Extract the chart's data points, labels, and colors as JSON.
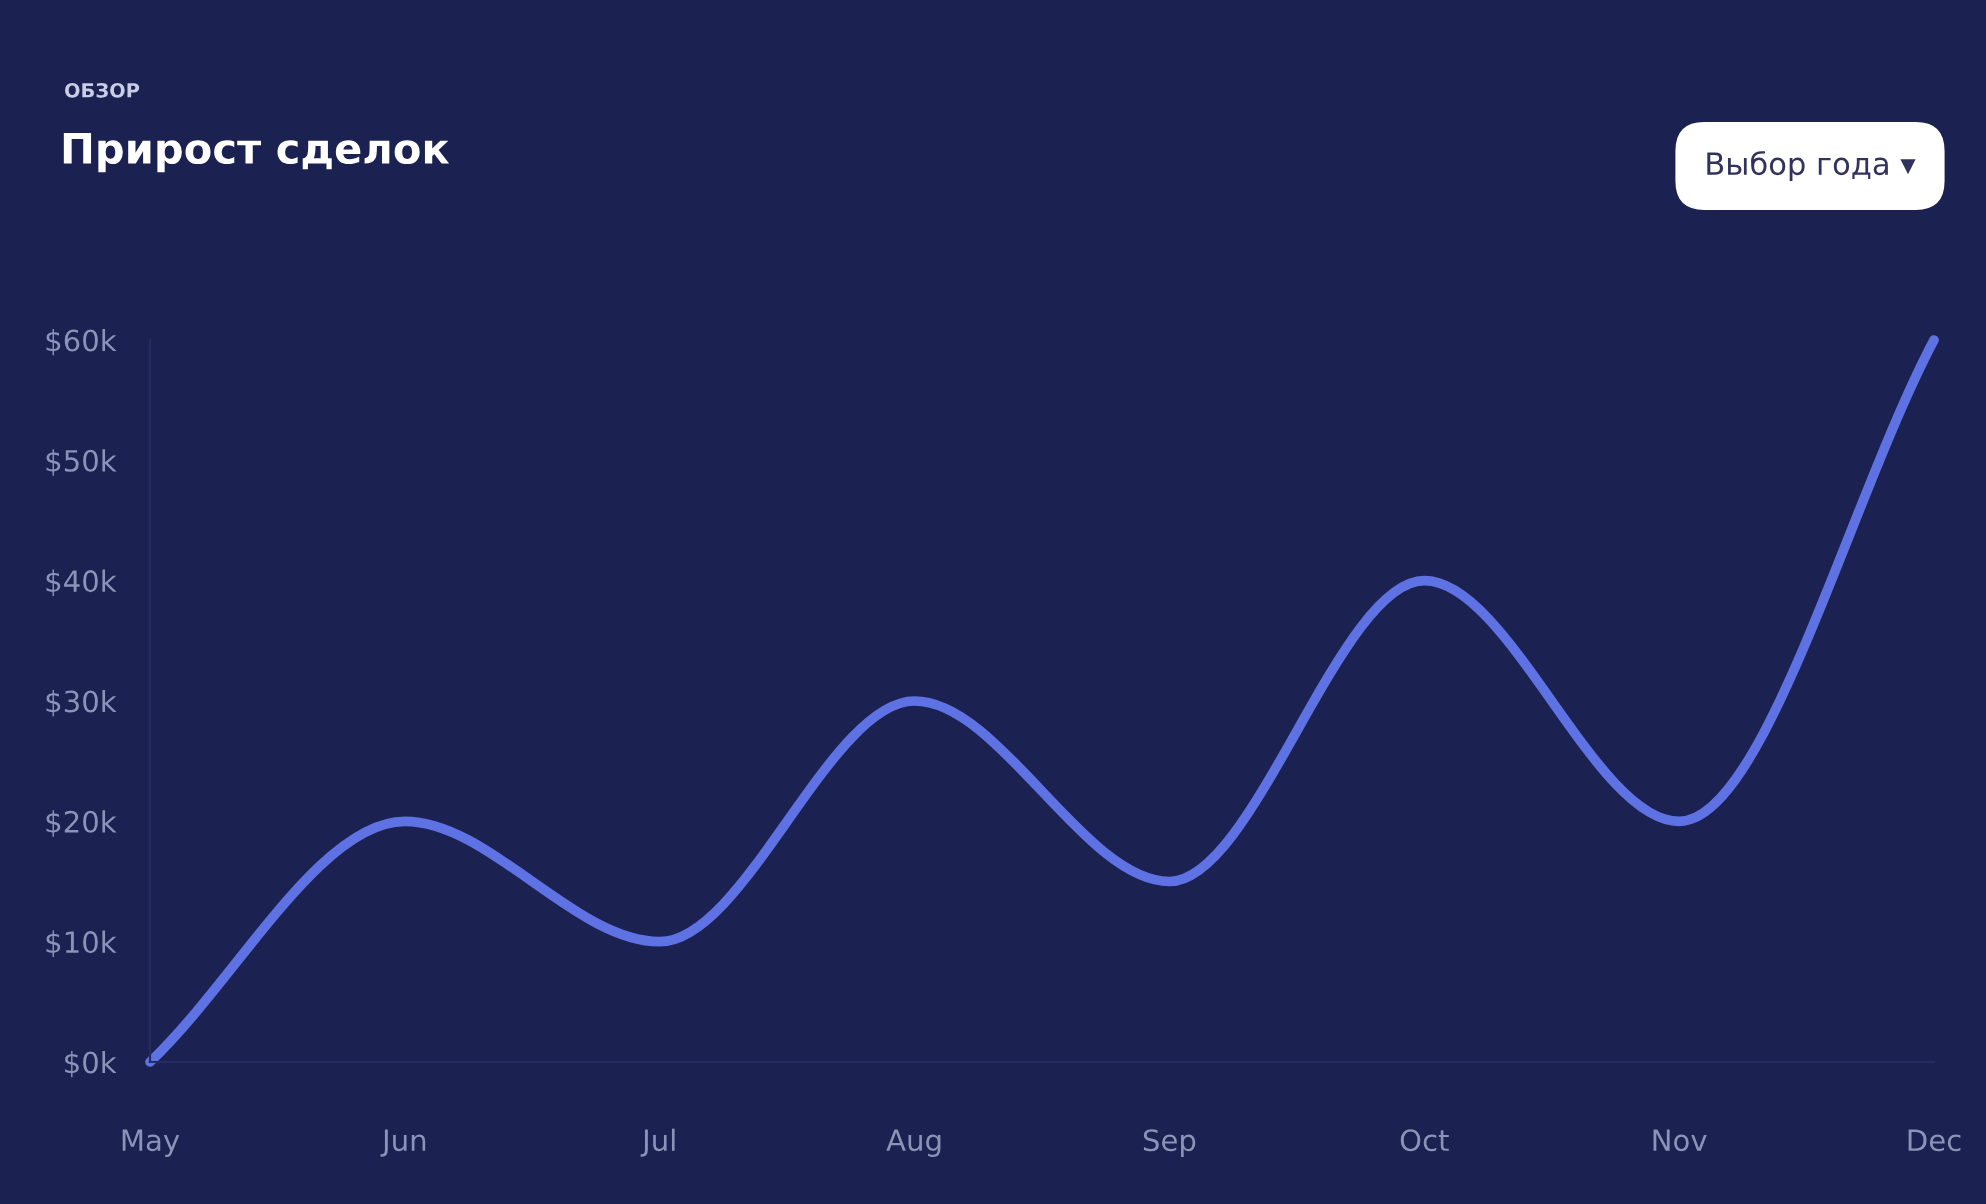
{
  "chart_data": {
    "type": "line",
    "title": "Прирост сделок",
    "subtitle": "ОБЗОР",
    "annotations": [
      "Выбор года ▾"
    ],
    "categories": [
      "May",
      "Jun",
      "Jul",
      "Aug",
      "Sep",
      "Oct",
      "Nov",
      "Dec"
    ],
    "series": [
      {
        "color": "#5e72e4",
        "values": [
          0,
          20,
          10,
          30,
          15,
          40,
          20,
          60
        ]
      }
    ],
    "ylim": [
      0,
      60
    ],
    "yticks": [
      {
        "value": 0,
        "label": "$0k"
      },
      {
        "value": 10,
        "label": "$10k"
      },
      {
        "value": 20,
        "label": "$20k"
      },
      {
        "value": 30,
        "label": "$30k"
      },
      {
        "value": 40,
        "label": "$40k"
      },
      {
        "value": 50,
        "label": "$50k"
      },
      {
        "value": 60,
        "label": "$60k"
      }
    ],
    "grid": false,
    "legend": false,
    "marker": "none",
    "line_style": "solid"
  }
}
